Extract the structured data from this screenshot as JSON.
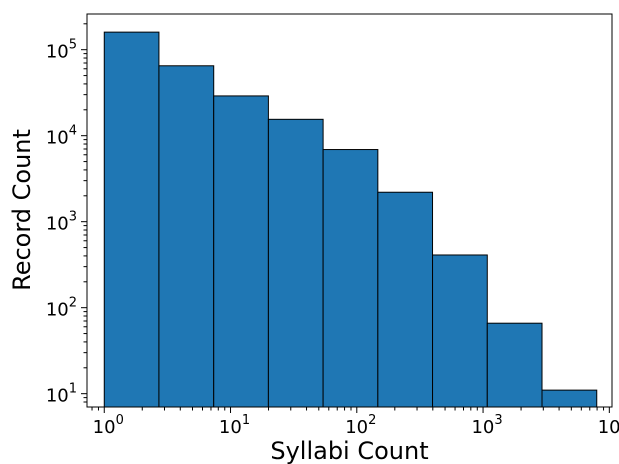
{
  "chart_data": {
    "type": "bar",
    "xlabel": "Syllabi Count",
    "ylabel": "Record Count",
    "x_scale": "log",
    "y_scale": "log",
    "xlim": [
      0.73,
      10500
    ],
    "ylim": [
      7,
      260000
    ],
    "grid": false,
    "legend": "none",
    "bar_color": "#1f77b4",
    "edge_color": "#000000",
    "x_ticks": [
      {
        "value": 1,
        "base": "10",
        "exp": "0"
      },
      {
        "value": 10,
        "base": "10",
        "exp": "1"
      },
      {
        "value": 100,
        "base": "10",
        "exp": "2"
      },
      {
        "value": 1000,
        "base": "10",
        "exp": "3"
      },
      {
        "value": 10000,
        "base": "10",
        "exp": "4"
      }
    ],
    "y_ticks": [
      {
        "value": 10,
        "base": "10",
        "exp": "1"
      },
      {
        "value": 100,
        "base": "10",
        "exp": "2"
      },
      {
        "value": 1000,
        "base": "10",
        "exp": "3"
      },
      {
        "value": 10000,
        "base": "10",
        "exp": "4"
      },
      {
        "value": 100000,
        "base": "10",
        "exp": "5"
      }
    ],
    "bins": [
      {
        "x0": 1,
        "x1": 2.71,
        "count": 160000
      },
      {
        "x0": 2.71,
        "x1": 7.36,
        "count": 65000
      },
      {
        "x0": 7.36,
        "x1": 19.95,
        "count": 29000
      },
      {
        "x0": 19.95,
        "x1": 54.1,
        "count": 15500
      },
      {
        "x0": 54.1,
        "x1": 146.8,
        "count": 6900
      },
      {
        "x0": 146.8,
        "x1": 398,
        "count": 2200
      },
      {
        "x0": 398,
        "x1": 1080,
        "count": 410
      },
      {
        "x0": 1080,
        "x1": 2930,
        "count": 66
      },
      {
        "x0": 2930,
        "x1": 7950,
        "count": 11
      }
    ]
  }
}
